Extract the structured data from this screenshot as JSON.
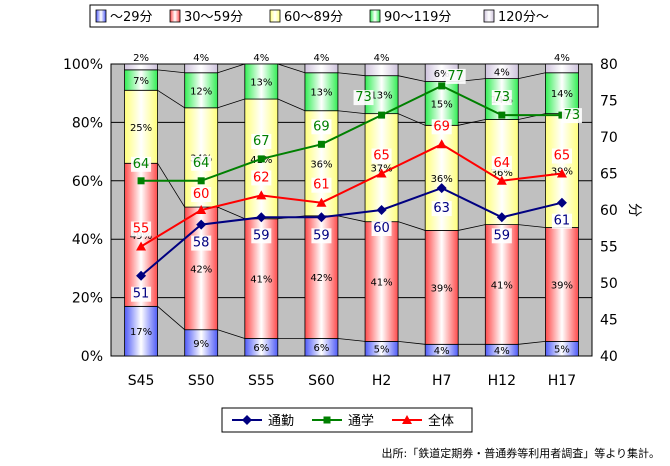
{
  "chart_data": {
    "type": "bar+line",
    "categories": [
      "S45",
      "S50",
      "S55",
      "S60",
      "H2",
      "H7",
      "H12",
      "H17"
    ],
    "stacked_series": [
      {
        "name": "～29分",
        "color": "#4f5bf7",
        "values": [
          17,
          9,
          6,
          6,
          5,
          4,
          4,
          5
        ]
      },
      {
        "name": "30～59分",
        "color": "#ff4b4b",
        "values": [
          49,
          42,
          41,
          42,
          41,
          39,
          41,
          39
        ]
      },
      {
        "name": "60～89分",
        "color": "#ffff7a",
        "values": [
          25,
          34,
          41,
          36,
          37,
          36,
          36,
          39
        ]
      },
      {
        "name": "90～119分",
        "color": "#33ee55",
        "values": [
          7,
          12,
          13,
          13,
          13,
          15,
          14,
          14
        ]
      },
      {
        "name": "120分～",
        "color": "#cfc4dd",
        "values": [
          2,
          4,
          4,
          4,
          4,
          6,
          4,
          4
        ]
      }
    ],
    "bar_labels": [
      [
        "17%",
        "49%",
        "25%",
        "7%",
        "2%"
      ],
      [
        "9%",
        "42%",
        "34%",
        "12%",
        "4%"
      ],
      [
        "6%",
        "41%",
        "41%",
        "13%",
        "4%"
      ],
      [
        "6%",
        "42%",
        "36%",
        "13%",
        "4%"
      ],
      [
        "5%",
        "41%",
        "37%",
        "13%",
        "4%"
      ],
      [
        "4%",
        "39%",
        "36%",
        "15%",
        "6%"
      ],
      [
        "4%",
        "41%",
        "36%",
        "14%",
        "4%"
      ],
      [
        "5%",
        "39%",
        "39%",
        "14%",
        "4%"
      ]
    ],
    "line_series": [
      {
        "name": "通勤",
        "color": "#000080",
        "marker": "diamond",
        "values": [
          51,
          58,
          59,
          59,
          60,
          63,
          59,
          61
        ]
      },
      {
        "name": "通学",
        "color": "#008000",
        "marker": "square",
        "values": [
          64,
          64,
          67,
          69,
          73,
          77,
          73,
          73
        ]
      },
      {
        "name": "全体",
        "color": "#ff0000",
        "marker": "triangle",
        "values": [
          55,
          60,
          62,
          61,
          65,
          69,
          64,
          65
        ]
      }
    ],
    "y_left": {
      "min": 0,
      "max": 100,
      "ticks": [
        "0%",
        "20%",
        "40%",
        "60%",
        "80%",
        "100%"
      ]
    },
    "y_right": {
      "min": 40,
      "max": 80,
      "ticks": [
        "40",
        "45",
        "50",
        "55",
        "60",
        "65",
        "70",
        "75",
        "80"
      ],
      "label": "分"
    },
    "source": "出所:「鉄道定期券・普通券等利用者調査」等より集計。"
  }
}
